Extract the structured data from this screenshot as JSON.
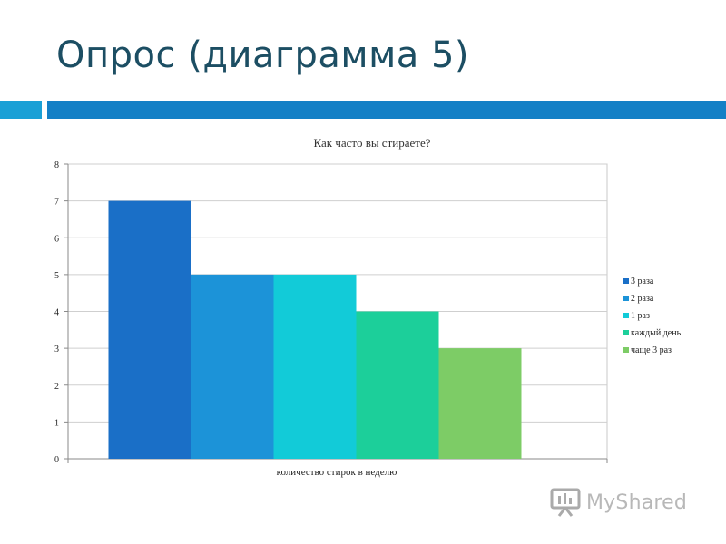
{
  "slide": {
    "title": "Опрос (диаграмма 5)",
    "accent_colors": {
      "left": "#1aa0d6",
      "right": "#1480c6"
    }
  },
  "watermark": {
    "text": "MyShared",
    "icon": "presentation-board-icon"
  },
  "chart_data": {
    "type": "bar",
    "title": "Как часто вы стираете?",
    "xlabel": "количество стирок в неделю",
    "ylabel": "",
    "ylim": [
      0,
      8
    ],
    "yticks": [
      0,
      1,
      2,
      3,
      4,
      5,
      6,
      7,
      8
    ],
    "grid": true,
    "legend_position": "right",
    "categories": [
      "количество стирок в неделю"
    ],
    "series": [
      {
        "name": "3 раза",
        "values": [
          7
        ],
        "color": "#1a6fc7"
      },
      {
        "name": "2 раза",
        "values": [
          5
        ],
        "color": "#1c93d8"
      },
      {
        "name": "1 раз",
        "values": [
          5
        ],
        "color": "#12cbd8"
      },
      {
        "name": "каждый день",
        "values": [
          4
        ],
        "color": "#1ccf9a"
      },
      {
        "name": "чаще 3 раз",
        "values": [
          3
        ],
        "color": "#7dcc66"
      }
    ]
  }
}
